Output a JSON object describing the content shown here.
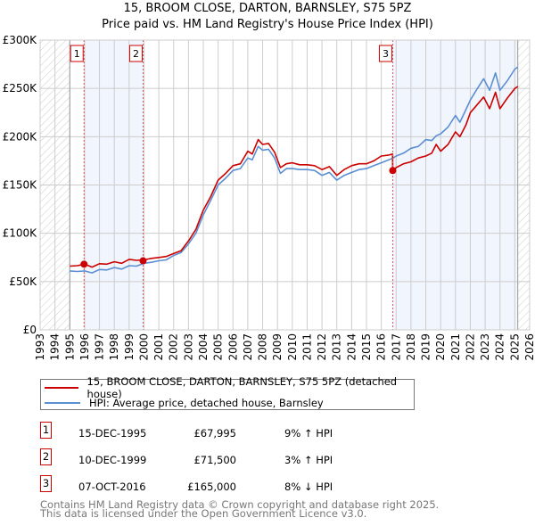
{
  "title": {
    "line1": "15, BROOM CLOSE, DARTON, BARNSLEY, S75 5PZ",
    "line2": "Price paid vs. HM Land Registry's House Price Index (HPI)"
  },
  "legend": {
    "items": [
      {
        "label": "15, BROOM CLOSE, DARTON, BARNSLEY, S75 5PZ (detached house)",
        "color": "#cc0000"
      },
      {
        "label": "HPI: Average price, detached house, Barnsley",
        "color": "#5b8fd4"
      }
    ]
  },
  "transactions": [
    {
      "num": "1",
      "date": "15-DEC-1995",
      "price": "£67,995",
      "hpi": "9% ↑ HPI"
    },
    {
      "num": "2",
      "date": "10-DEC-1999",
      "price": "£71,500",
      "hpi": "3% ↑ HPI"
    },
    {
      "num": "3",
      "date": "07-OCT-2016",
      "price": "£165,000",
      "hpi": "8% ↓ HPI"
    }
  ],
  "footer": {
    "line1": "Contains HM Land Registry data © Crown copyright and database right 2025.",
    "line2": "This data is licensed under the Open Government Licence v3.0."
  },
  "chart_data": {
    "type": "line",
    "xlim": [
      1993,
      2026
    ],
    "ylim": [
      0,
      300000
    ],
    "grid": true,
    "legend_placement": "below",
    "x_ticks": [
      "1993",
      "1994",
      "1995",
      "1996",
      "1997",
      "1998",
      "1999",
      "2000",
      "2001",
      "2002",
      "2003",
      "2004",
      "2005",
      "2006",
      "2007",
      "2008",
      "2009",
      "2010",
      "2011",
      "2012",
      "2013",
      "2014",
      "2015",
      "2016",
      "2017",
      "2018",
      "2019",
      "2020",
      "2021",
      "2022",
      "2023",
      "2024",
      "2025",
      "2026"
    ],
    "y_ticks": [
      {
        "value": 0,
        "label": "£0"
      },
      {
        "value": 50000,
        "label": "£50K"
      },
      {
        "value": 100000,
        "label": "£100K"
      },
      {
        "value": 150000,
        "label": "£150K"
      },
      {
        "value": 200000,
        "label": "£200K"
      },
      {
        "value": 250000,
        "label": "£250K"
      },
      {
        "value": 300000,
        "label": "£300K"
      }
    ],
    "data_range": [
      1995.0,
      2025.2
    ],
    "shaded_ranges": [
      [
        1995.96,
        1999.94
      ],
      [
        2016.77,
        2025.2
      ]
    ],
    "sales": [
      {
        "label": "1",
        "x": 1995.96,
        "y": 67995
      },
      {
        "label": "2",
        "x": 1999.94,
        "y": 71500
      },
      {
        "label": "3",
        "x": 2016.77,
        "y": 165000
      }
    ],
    "series": [
      {
        "name": "15, BROOM CLOSE, DARTON, BARNSLEY, S75 5PZ (detached house)",
        "color": "#cc0000",
        "x": [
          1995,
          1995.5,
          1996,
          1996.5,
          1997,
          1997.5,
          1998,
          1998.5,
          1999,
          1999.5,
          2000,
          2000.5,
          2001,
          2001.5,
          2002,
          2002.5,
          2003,
          2003.5,
          2004,
          2004.5,
          2005,
          2005.5,
          2006,
          2006.5,
          2007,
          2007.3,
          2007.7,
          2008,
          2008.4,
          2008.8,
          2009.2,
          2009.6,
          2010,
          2010.5,
          2011,
          2011.5,
          2012,
          2012.5,
          2013,
          2013.5,
          2014,
          2014.5,
          2015,
          2015.5,
          2016,
          2016.5,
          2016.76,
          2016.77,
          2017,
          2017.5,
          2018,
          2018.5,
          2019,
          2019.4,
          2019.7,
          2020,
          2020.5,
          2021,
          2021.3,
          2021.7,
          2022,
          2022.4,
          2022.9,
          2023.3,
          2023.7,
          2024,
          2024.5,
          2025,
          2025.2
        ],
        "y": [
          66000,
          66500,
          68000,
          65000,
          68500,
          68000,
          70500,
          69000,
          73000,
          72000,
          72500,
          74000,
          75000,
          76000,
          79000,
          82000,
          92000,
          104000,
          124000,
          138000,
          155000,
          162000,
          170000,
          172000,
          185000,
          182000,
          197000,
          192000,
          193000,
          184000,
          168000,
          172000,
          173000,
          171000,
          171000,
          170000,
          166000,
          169000,
          160000,
          166000,
          170000,
          172000,
          172000,
          175000,
          180000,
          181000,
          182000,
          165000,
          168000,
          172000,
          174000,
          178000,
          180000,
          183000,
          192000,
          185000,
          192000,
          205000,
          200000,
          212000,
          225000,
          232000,
          241000,
          229000,
          246000,
          229000,
          240000,
          250000,
          252000
        ]
      },
      {
        "name": "HPI: Average price, detached house, Barnsley",
        "color": "#5b8fd4",
        "x": [
          1995,
          1995.5,
          1996,
          1996.5,
          1997,
          1997.5,
          1998,
          1998.5,
          1999,
          1999.5,
          2000,
          2000.5,
          2001,
          2001.5,
          2002,
          2002.5,
          2003,
          2003.5,
          2004,
          2004.5,
          2005,
          2005.5,
          2006,
          2006.5,
          2007,
          2007.3,
          2007.7,
          2008,
          2008.4,
          2008.8,
          2009.2,
          2009.6,
          2010,
          2010.5,
          2011,
          2011.5,
          2012,
          2012.5,
          2013,
          2013.5,
          2014,
          2014.5,
          2015,
          2015.5,
          2016,
          2016.5,
          2016.8,
          2017,
          2017.5,
          2018,
          2018.5,
          2019,
          2019.4,
          2019.7,
          2020,
          2020.5,
          2021,
          2021.3,
          2021.7,
          2022,
          2022.4,
          2022.9,
          2023.3,
          2023.7,
          2024,
          2024.5,
          2025,
          2025.2
        ],
        "y": [
          61000,
          60500,
          61000,
          59000,
          62500,
          62000,
          64500,
          63000,
          66500,
          66000,
          69000,
          70000,
          71500,
          72500,
          77000,
          80000,
          89000,
          100000,
          119000,
          134000,
          150000,
          157000,
          165000,
          167000,
          178000,
          176000,
          190000,
          186000,
          187000,
          178000,
          162000,
          167000,
          167000,
          166000,
          166000,
          165000,
          160000,
          163000,
          155000,
          160000,
          163000,
          166000,
          167000,
          170000,
          173000,
          176000,
          178000,
          180000,
          183000,
          188000,
          190000,
          197000,
          196000,
          201000,
          203000,
          210000,
          222000,
          215000,
          228000,
          238000,
          248000,
          260000,
          248000,
          266000,
          248000,
          258000,
          270000,
          272000
        ]
      }
    ]
  }
}
